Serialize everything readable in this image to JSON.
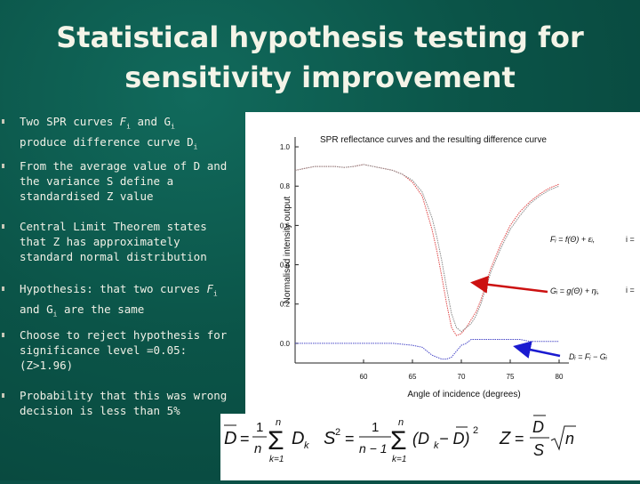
{
  "slide": {
    "title_line1": "Statistical hypothesis testing for",
    "title_line2": "sensitivity improvement"
  },
  "bullets": [
    {
      "before": "Two SPR curves ",
      "var1": "F",
      "sub1": "i",
      "mid": " and G",
      "sub2": "i",
      "line2": "produce difference curve D",
      "sub3": "i"
    },
    {
      "text": "From the average value of D and the variance S define a standardised Z value"
    },
    {
      "text": "Central Limit Theorem states that Z has approximately standard normal distribution"
    },
    {
      "before": "Hypothesis: that two curves ",
      "var1": "F",
      "sub1": "i",
      "line2": "and G",
      "sub2": "i",
      "after": " are the same"
    },
    {
      "text": "Choose to reject hypothesis for significance level =0.05: (Z>1.96)"
    },
    {
      "text": "Probability that this was wrong decision is less than 5%"
    }
  ],
  "chart_data": {
    "type": "line",
    "title": "SPR reflectance curves and the resulting difference curve",
    "xlabel": "Angle of incidence (degrees)",
    "ylabel": "Normalised intensity output",
    "xlim": [
      53,
      81
    ],
    "ylim": [
      -0.1,
      1.05
    ],
    "xticks": [
      "60",
      "65",
      "70",
      "75",
      "80"
    ],
    "yticks": [
      "0.0",
      "0.2",
      "0.4",
      "0.6",
      "0.8",
      "1.0"
    ],
    "grid": false,
    "series": [
      {
        "color": "#e04a4a",
        "x": [
          53,
          54,
          55,
          56,
          57,
          58,
          59,
          60,
          61,
          62,
          63,
          64,
          65,
          66,
          67,
          67.5,
          68,
          68.5,
          69,
          69.5,
          70,
          70.5,
          71,
          71.5,
          72,
          72.5,
          73,
          74,
          75,
          76,
          77,
          78,
          79,
          80
        ],
        "values": [
          0.88,
          0.89,
          0.9,
          0.9,
          0.9,
          0.895,
          0.9,
          0.91,
          0.9,
          0.89,
          0.88,
          0.86,
          0.82,
          0.75,
          0.58,
          0.47,
          0.34,
          0.2,
          0.08,
          0.04,
          0.05,
          0.08,
          0.12,
          0.16,
          0.22,
          0.3,
          0.38,
          0.5,
          0.6,
          0.67,
          0.72,
          0.76,
          0.79,
          0.81
        ]
      },
      {
        "color": "#8a8a8a",
        "x": [
          53,
          54,
          55,
          56,
          57,
          58,
          59,
          60,
          61,
          62,
          63,
          64,
          65,
          66,
          67,
          67.5,
          68,
          68.5,
          69,
          69.5,
          70,
          70.5,
          71,
          71.5,
          72,
          72.5,
          73,
          74,
          75,
          76,
          77,
          78,
          79,
          80
        ],
        "values": [
          0.88,
          0.89,
          0.9,
          0.9,
          0.9,
          0.895,
          0.9,
          0.91,
          0.9,
          0.89,
          0.88,
          0.86,
          0.83,
          0.77,
          0.64,
          0.54,
          0.42,
          0.28,
          0.15,
          0.08,
          0.06,
          0.08,
          0.1,
          0.14,
          0.2,
          0.28,
          0.36,
          0.48,
          0.58,
          0.65,
          0.71,
          0.75,
          0.78,
          0.8
        ]
      },
      {
        "color": "#4a4ac8",
        "x": [
          53,
          55,
          57,
          59,
          61,
          63,
          65,
          66,
          67,
          67.5,
          68,
          68.5,
          69,
          69.5,
          70,
          70.5,
          71,
          71.5,
          72,
          73,
          74,
          75,
          76,
          77,
          78,
          79,
          80
        ],
        "values": [
          0.0,
          0.0,
          0.0,
          0.0,
          0.0,
          0.0,
          -0.01,
          -0.02,
          -0.06,
          -0.07,
          -0.08,
          -0.08,
          -0.07,
          -0.04,
          -0.01,
          0.0,
          0.02,
          0.02,
          0.02,
          0.02,
          0.02,
          0.02,
          0.02,
          0.01,
          0.01,
          0.01,
          0.01
        ]
      }
    ],
    "annotations": {
      "model_F": "Fᵢ = f(Θ) + εᵢ,",
      "model_G": "Gᵢ = g(Θ) + ηᵢ,",
      "model_D": "Dᵢ = Fᵢ − Gᵢ",
      "edge_label": "i ="
    },
    "arrow_color": "#cc1111",
    "arrow_color_2": "#1a1ad0"
  },
  "formulas": {
    "mean": {
      "lhs": "D",
      "eq": "=",
      "coef_num": "1",
      "coef_den": "n",
      "top": "n",
      "sigma": "Σ",
      "bottom": "k=1",
      "term": "D",
      "term_sub": "k"
    },
    "variance": {
      "lhs": "S",
      "lhs_sup": "2",
      "eq": "=",
      "coef_num": "1",
      "coef_den": "n − 1",
      "top": "n",
      "sigma": "Σ",
      "bottom": "k=1",
      "term": "(D",
      "term_sub": "k",
      "term_rest": " − D)",
      "term_sup": "2"
    },
    "z": {
      "lhs": "Z",
      "eq": "=",
      "num": "D",
      "den": "S",
      "root": "n"
    }
  }
}
